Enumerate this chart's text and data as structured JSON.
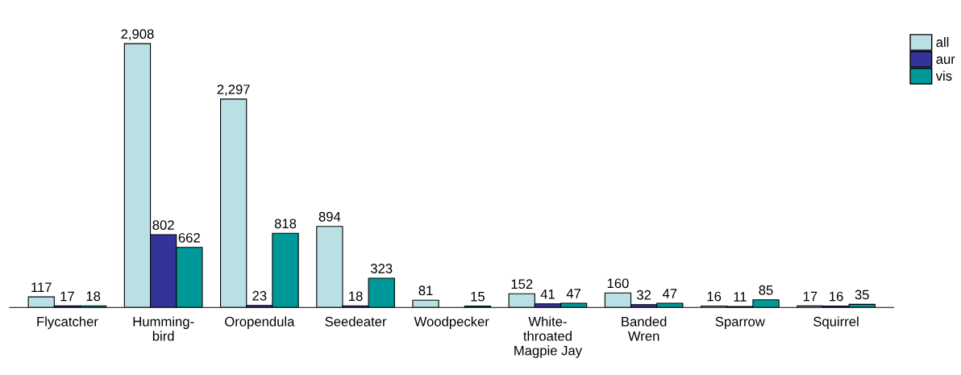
{
  "chart_data": {
    "type": "bar",
    "categories": [
      "Flycatcher",
      "Humming-\nbird",
      "Oropendula",
      "Seedeater",
      "Woodpecker",
      "White-\nthroated\nMagpie Jay",
      "Banded\nWren",
      "Sparrow",
      "Squirrel"
    ],
    "series": [
      {
        "name": "all",
        "color": "#b9e0e4",
        "values": [
          117,
          2908,
          2297,
          894,
          81,
          152,
          160,
          16,
          17
        ],
        "value_labels": [
          "117",
          "2,908",
          "2,297",
          "894",
          "81",
          "152",
          "160",
          "16",
          "17"
        ]
      },
      {
        "name": "aur",
        "color": "#333399",
        "values": [
          17,
          802,
          23,
          18,
          null,
          41,
          32,
          11,
          16
        ],
        "value_labels": [
          "17",
          "802",
          "23",
          "18",
          null,
          "41",
          "32",
          "11",
          "16"
        ]
      },
      {
        "name": "vis",
        "color": "#009999",
        "values": [
          18,
          662,
          818,
          323,
          15,
          47,
          47,
          85,
          35
        ],
        "value_labels": [
          "18",
          "662",
          "818",
          "323",
          "15",
          "47",
          "47",
          "85",
          "35"
        ]
      }
    ],
    "legend": "top right",
    "grid": false,
    "tick_labels": "x"
  }
}
